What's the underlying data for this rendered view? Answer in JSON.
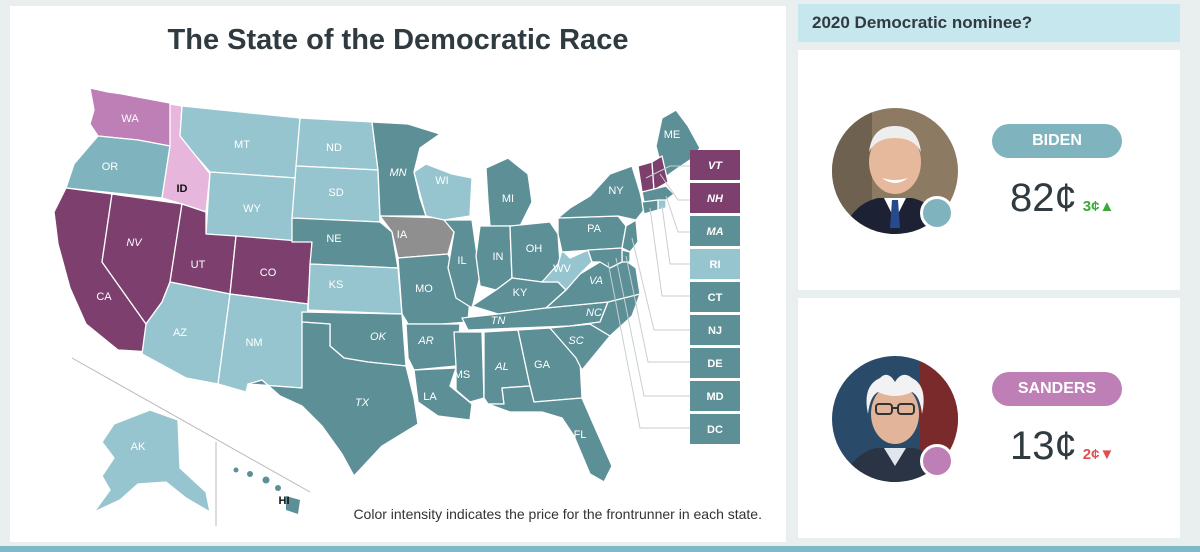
{
  "map": {
    "title": "The State of the Democratic Race",
    "note": "Color intensity indicates the price for the frontrunner in each state.",
    "legend_colors": {
      "biden_dark": "#5d8f97",
      "biden_mid": "#7fb3bd",
      "biden_light": "#96c5cf",
      "sanders_dark": "#7c3f6e",
      "sanders_mid": "#bd7fb5",
      "sanders_light": "#e6b6dc",
      "undecided": "#8f8f8f"
    },
    "states": [
      "WA",
      "OR",
      "CA",
      "NV",
      "ID",
      "MT",
      "WY",
      "UT",
      "AZ",
      "CO",
      "NM",
      "ND",
      "SD",
      "NE",
      "KS",
      "OK",
      "TX",
      "MN",
      "IA",
      "MO",
      "AR",
      "LA",
      "WI",
      "IL",
      "MS",
      "MI",
      "IN",
      "KY",
      "TN",
      "AL",
      "OH",
      "WV",
      "GA",
      "FL",
      "SC",
      "NC",
      "VA",
      "PA",
      "NY",
      "ME",
      "AK",
      "HI"
    ],
    "ne_boxes": [
      "VT",
      "NH",
      "MA",
      "RI",
      "CT",
      "NJ",
      "DE",
      "MD",
      "DC"
    ]
  },
  "market": {
    "header": "2020 Democratic nominee?",
    "candidates": [
      {
        "name": "BIDEN",
        "price": "82¢",
        "change": "3¢",
        "direction": "up",
        "color": "#7fb3bd",
        "change_color": "#3aaa35"
      },
      {
        "name": "SANDERS",
        "price": "13¢",
        "change": "2¢",
        "direction": "down",
        "color": "#bd7fb5",
        "change_color": "#e05050"
      }
    ]
  }
}
